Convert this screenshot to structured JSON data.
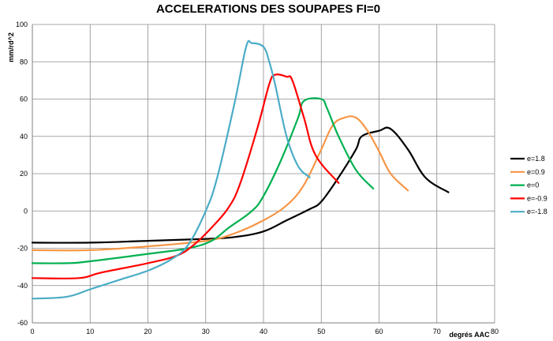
{
  "chart_data": {
    "type": "line",
    "title": "ACCELERATIONS DES SOUPAPES  FI=0",
    "xlabel": "degrés AAC",
    "ylabel": "mm/rd^2",
    "xlim": [
      0,
      80
    ],
    "ylim": [
      -60,
      100
    ],
    "xticks": [
      "0",
      "10",
      "20",
      "30",
      "40",
      "50",
      "60",
      "70",
      "80"
    ],
    "yticks": [
      "-60",
      "-40",
      "-20",
      "0",
      "20",
      "40",
      "60",
      "80",
      "100"
    ],
    "grid": true,
    "legend_position": "right",
    "series": [
      {
        "name": "e=1.8",
        "color": "#000000",
        "points": [
          [
            0,
            -17
          ],
          [
            10,
            -17
          ],
          [
            20,
            -16
          ],
          [
            30,
            -15
          ],
          [
            35,
            -14
          ],
          [
            40,
            -11
          ],
          [
            44,
            -5
          ],
          [
            48,
            1
          ],
          [
            50,
            5
          ],
          [
            53,
            18
          ],
          [
            56,
            33
          ],
          [
            57,
            40
          ],
          [
            60,
            43
          ],
          [
            62,
            44
          ],
          [
            65,
            33
          ],
          [
            68,
            18
          ],
          [
            72,
            10
          ]
        ]
      },
      {
        "name": "e=0.9",
        "color": "#F79646",
        "points": [
          [
            0,
            -21
          ],
          [
            10,
            -21
          ],
          [
            20,
            -19
          ],
          [
            30,
            -16
          ],
          [
            35,
            -12
          ],
          [
            40,
            -5
          ],
          [
            44,
            3
          ],
          [
            47,
            14
          ],
          [
            50,
            33
          ],
          [
            52,
            46
          ],
          [
            54,
            50
          ],
          [
            56,
            50
          ],
          [
            58,
            43
          ],
          [
            60,
            32
          ],
          [
            62,
            20
          ],
          [
            65,
            11
          ]
        ]
      },
      {
        "name": "e=0",
        "color": "#00B050",
        "points": [
          [
            0,
            -28
          ],
          [
            6,
            -28
          ],
          [
            10,
            -27
          ],
          [
            20,
            -23
          ],
          [
            27,
            -20
          ],
          [
            31,
            -16
          ],
          [
            34,
            -9
          ],
          [
            38,
            0
          ],
          [
            40,
            8
          ],
          [
            43,
            27
          ],
          [
            46,
            50
          ],
          [
            47,
            59
          ],
          [
            50,
            60
          ],
          [
            51,
            55
          ],
          [
            53,
            40
          ],
          [
            56,
            22
          ],
          [
            59,
            12
          ]
        ]
      },
      {
        "name": "e=-0.9",
        "color": "#FF0000",
        "points": [
          [
            0,
            -36
          ],
          [
            8,
            -36
          ],
          [
            12,
            -33
          ],
          [
            20,
            -28
          ],
          [
            25,
            -24
          ],
          [
            28,
            -18
          ],
          [
            31,
            -9
          ],
          [
            34,
            2
          ],
          [
            36,
            15
          ],
          [
            39,
            45
          ],
          [
            41,
            68
          ],
          [
            42,
            73
          ],
          [
            44,
            72
          ],
          [
            45,
            70
          ],
          [
            47,
            50
          ],
          [
            49,
            30
          ],
          [
            53,
            15
          ]
        ]
      },
      {
        "name": "e=-1.8",
        "color": "#4BACC6",
        "points": [
          [
            0,
            -47
          ],
          [
            6,
            -46
          ],
          [
            10,
            -42
          ],
          [
            15,
            -37
          ],
          [
            20,
            -32
          ],
          [
            24,
            -26
          ],
          [
            27,
            -18
          ],
          [
            30,
            0
          ],
          [
            32,
            18
          ],
          [
            35,
            58
          ],
          [
            37,
            88
          ],
          [
            38,
            90
          ],
          [
            40,
            88
          ],
          [
            41,
            80
          ],
          [
            42,
            68
          ],
          [
            44,
            40
          ],
          [
            46,
            24
          ],
          [
            48,
            18
          ]
        ]
      }
    ]
  }
}
